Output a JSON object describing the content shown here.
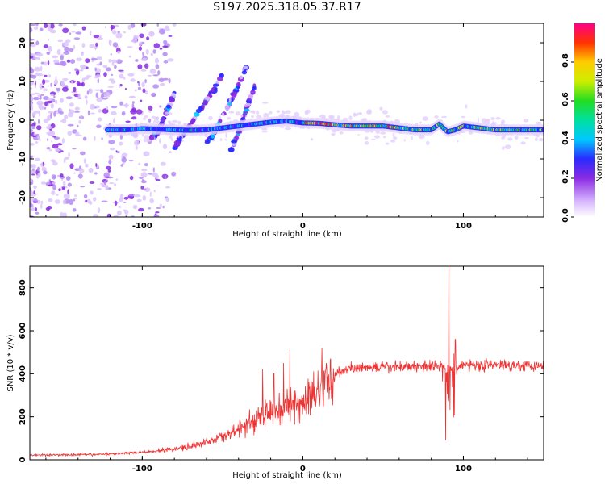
{
  "title": "S197.2025.318.05.37.R17",
  "chart_data": [
    {
      "type": "heatmap",
      "name": "spectrogram",
      "xlabel": "Height of straight line (km)",
      "ylabel": "Frequency (Hz)",
      "xlim": [
        -170,
        150
      ],
      "ylim": [
        -25,
        25
      ],
      "xticks": [
        -100,
        0,
        100
      ],
      "yticks": [
        -20,
        -10,
        0,
        10,
        20
      ],
      "colorbar": {
        "label": "Normalized spectral amplitude",
        "range": [
          0,
          1
        ],
        "ticks": [
          "0.0",
          "0.2",
          "0.4",
          "0.6",
          "0.8"
        ]
      },
      "ridge": {
        "x": [
          -122,
          -110,
          -100,
          -90,
          -80,
          -70,
          -60,
          -50,
          -40,
          -30,
          -20,
          -10,
          0,
          10,
          20,
          30,
          40,
          50,
          60,
          70,
          80,
          85,
          90,
          95,
          100,
          110,
          120,
          130,
          140,
          150
        ],
        "freq": [
          -2.5,
          -2.5,
          -2.2,
          -2.3,
          -2.5,
          -2.6,
          -2.5,
          -2.0,
          -1.5,
          -1.0,
          -0.5,
          -0.2,
          -0.7,
          -0.8,
          -1.2,
          -1.5,
          -1.5,
          -1.5,
          -2.0,
          -2.5,
          -2.5,
          -1.0,
          -3.0,
          -2.5,
          -1.5,
          -2.0,
          -2.5,
          -2.5,
          -2.5,
          -2.5
        ]
      },
      "branches": [
        {
          "x": [
            -95,
            -90,
            -85,
            -80
          ],
          "freq": [
            -5,
            -3,
            2,
            7
          ]
        },
        {
          "x": [
            -80,
            -75,
            -70,
            -65,
            -60,
            -55,
            -50
          ],
          "freq": [
            -7,
            -4,
            -1,
            2,
            5,
            8,
            12
          ]
        },
        {
          "x": [
            -60,
            -55,
            -50,
            -45,
            -40,
            -35
          ],
          "freq": [
            -6,
            -3,
            1,
            5,
            9,
            14
          ]
        },
        {
          "x": [
            -45,
            -40,
            -35,
            -30
          ],
          "freq": [
            -8,
            -3,
            3,
            9
          ]
        }
      ]
    },
    {
      "type": "line",
      "name": "snr",
      "xlabel": "Height of straight line (km)",
      "ylabel": "SNR (10 * v/v)",
      "xlim": [
        -170,
        150
      ],
      "ylim": [
        0,
        900
      ],
      "xticks": [
        -100,
        0,
        100
      ],
      "yticks": [
        0,
        200,
        400,
        600,
        800
      ],
      "color": "#ee3333",
      "envelope": {
        "x": [
          -170,
          -130,
          -100,
          -80,
          -60,
          -40,
          -30,
          -20,
          -10,
          0,
          10,
          20,
          30,
          50,
          70,
          85,
          90,
          95,
          100,
          120,
          150
        ],
        "mean": [
          22,
          24,
          35,
          50,
          80,
          140,
          180,
          220,
          250,
          265,
          330,
          400,
          425,
          430,
          435,
          440,
          420,
          430,
          440,
          440,
          440
        ]
      },
      "spikes": [
        {
          "x": -25,
          "value": 420
        },
        {
          "x": -18,
          "value": 400
        },
        {
          "x": -12,
          "value": 450
        },
        {
          "x": -8,
          "value": 510
        },
        {
          "x": 12,
          "value": 520
        },
        {
          "x": 87,
          "value": 700
        },
        {
          "x": 91,
          "value": 900
        },
        {
          "x": 89,
          "value": 90
        },
        {
          "x": 95,
          "value": 560
        }
      ]
    }
  ]
}
